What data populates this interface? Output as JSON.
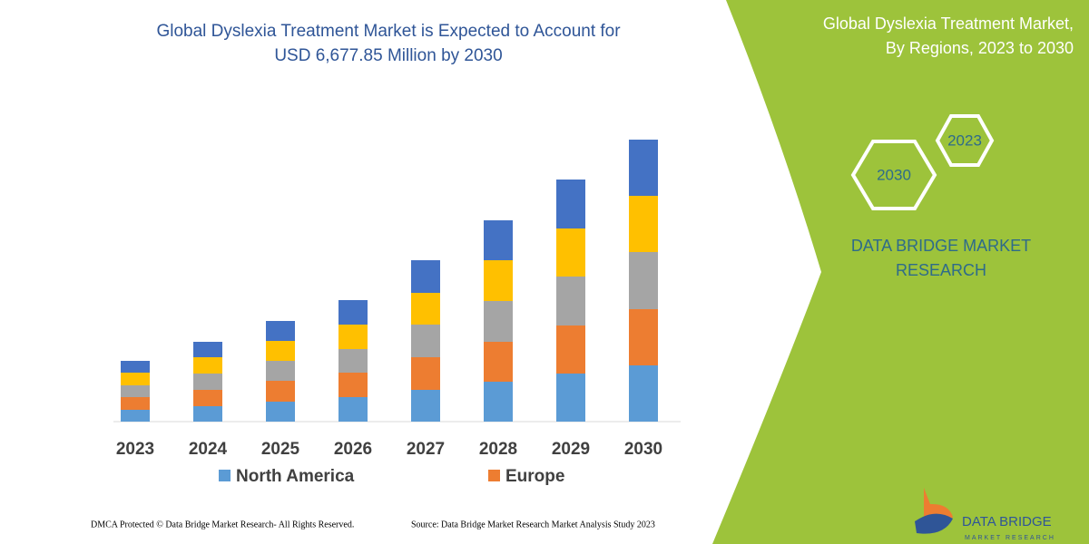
{
  "chart_data": {
    "type": "bar",
    "stacked": true,
    "title": [
      "Global Dyslexia Treatment Market is Expected to Account for",
      "USD 6,677.85 Million by 2030"
    ],
    "categories": [
      "2023",
      "2024",
      "2025",
      "2026",
      "2027",
      "2028",
      "2029",
      "2030"
    ],
    "series": [
      {
        "name": "North America",
        "color": "#5b9bd5",
        "values": [
          13,
          17,
          22,
          27,
          35,
          44,
          53,
          62
        ]
      },
      {
        "name": "Europe",
        "color": "#ed7d31",
        "values": [
          14,
          18,
          23,
          27,
          36,
          44,
          53,
          62
        ]
      },
      {
        "color": "#a5a5a5",
        "values": [
          13,
          18,
          22,
          26,
          36,
          45,
          54,
          63
        ]
      },
      {
        "color": "#ffc000",
        "values": [
          14,
          18,
          22,
          27,
          35,
          45,
          53,
          62
        ]
      },
      {
        "color": "#4472c4",
        "values": [
          13,
          17,
          22,
          27,
          36,
          44,
          54,
          62
        ]
      }
    ]
  },
  "panel": {
    "title": [
      "Global Dyslexia Treatment Market,",
      "By Regions, 2023 to 2030"
    ],
    "hex_top": "2023",
    "hex_bottom": "2030",
    "brand": [
      "DATA BRIDGE MARKET",
      "RESEARCH"
    ]
  },
  "footer": {
    "dmca": "DMCA Protected © Data Bridge Market Research-  All Rights Reserved.",
    "source": "Source: Data Bridge Market Research  Market Analysis Study 2023"
  },
  "logo": {
    "name": "DATA BRIDGE",
    "tagline": "MARKET RESEARCH"
  }
}
